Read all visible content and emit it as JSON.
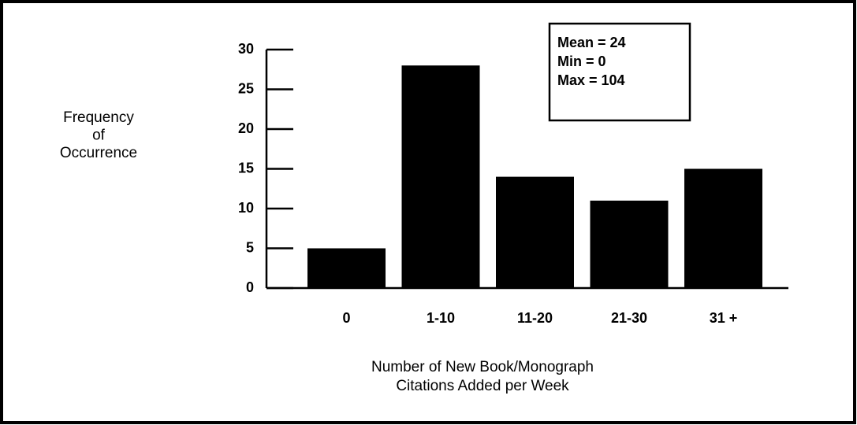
{
  "chart_data": {
    "type": "bar",
    "y_label": [
      "Frequency",
      "of",
      "Occurrence"
    ],
    "x_label": [
      "Number of New Book/Monograph",
      "Citations Added per Week"
    ],
    "categories": [
      "0",
      "1-10",
      "11-20",
      "21-30",
      "31 +"
    ],
    "values": [
      5,
      28,
      14,
      11,
      15
    ],
    "color": "#000000",
    "ylim": [
      0,
      30
    ],
    "yticks": [
      0,
      5,
      10,
      15,
      20,
      25,
      30
    ],
    "annotations": [
      "Mean = 24",
      "Min = 0",
      "Max = 104"
    ]
  }
}
